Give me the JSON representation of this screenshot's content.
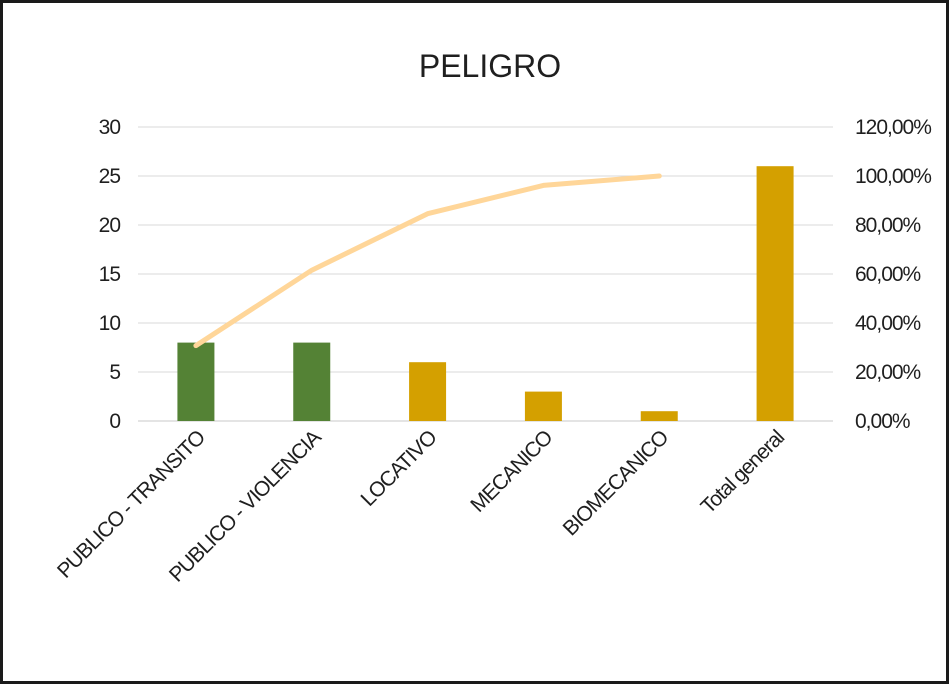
{
  "chart_data": {
    "type": "bar",
    "title": "PELIGRO",
    "xlabel": "",
    "ylabel": "",
    "categories": [
      "PUBLICO - TRANSITO",
      "PUBLICO - VIOLENCIA",
      "LOCATIVO",
      "MECANICO",
      "BIOMECANICO",
      "Total general"
    ],
    "series": [
      {
        "type": "bar",
        "axis": "left",
        "values": [
          8,
          8,
          6,
          3,
          1,
          26
        ],
        "colors": [
          "#548235",
          "#548235",
          "#D4A000",
          "#D4A000",
          "#D4A000",
          "#D4A000"
        ]
      },
      {
        "type": "line",
        "axis": "right",
        "values": [
          0.3077,
          0.6154,
          0.8462,
          0.9615,
          1.0,
          null
        ],
        "color": "#FFD699"
      }
    ],
    "ylim": [
      0,
      30
    ],
    "yticks": [
      "0",
      "5",
      "10",
      "15",
      "20",
      "25",
      "30"
    ],
    "y2lim": [
      0,
      1.2
    ],
    "y2ticks": [
      "0,00%",
      "20,00%",
      "40,00%",
      "60,00%",
      "80,00%",
      "100,00%",
      "120,00%"
    ],
    "grid": true,
    "legend": "none"
  }
}
